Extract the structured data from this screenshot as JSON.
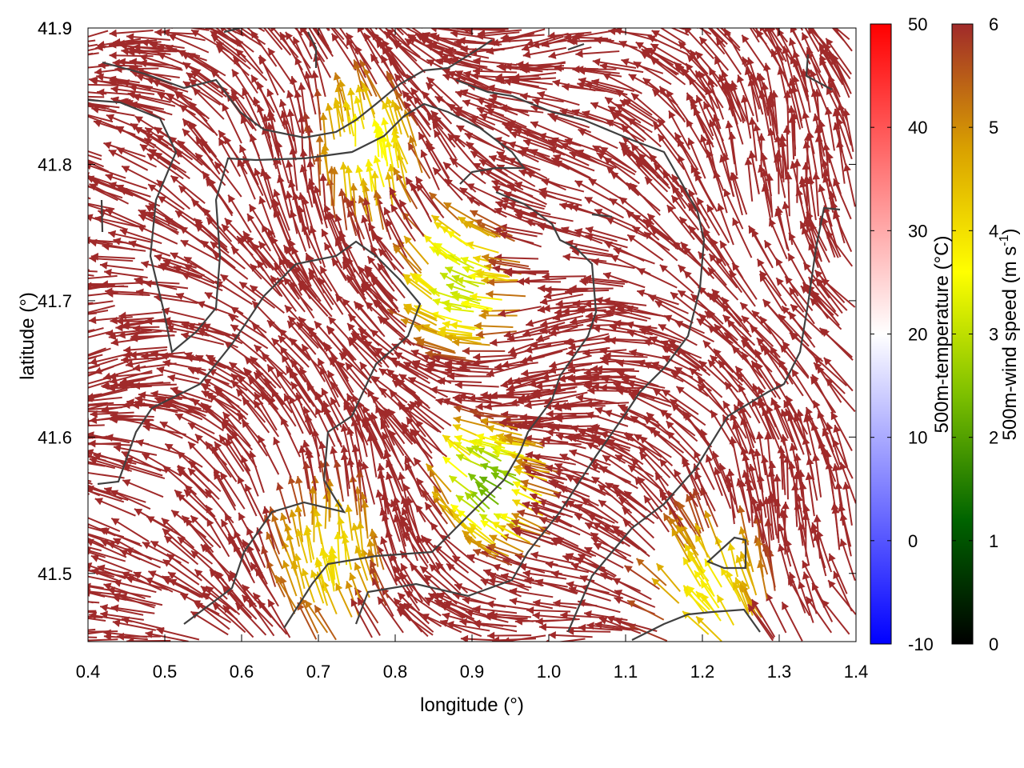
{
  "chart_data": {
    "type": "vector-field",
    "x_axis": {
      "label": "longitude (°)",
      "range": [
        0.4,
        1.4
      ],
      "ticks": [
        "0.4",
        "0.5",
        "0.6",
        "0.7",
        "0.8",
        "0.9",
        "1.0",
        "1.1",
        "1.2",
        "1.3",
        "1.4"
      ]
    },
    "y_axis": {
      "label": "latitude (°)",
      "range": [
        41.45,
        41.9
      ],
      "ticks": [
        "41.5",
        "41.6",
        "41.7",
        "41.8",
        "41.9"
      ]
    },
    "colorbar_temperature": {
      "label": "500m-temperature (°C)",
      "range": [
        -10,
        50
      ],
      "ticks": [
        "-10",
        "0",
        "10",
        "20",
        "30",
        "40",
        "50"
      ],
      "colors": [
        "#0000ff",
        "#ffffff",
        "#ff0000"
      ]
    },
    "colorbar_wind": {
      "label_main": "500m-wind speed (m s",
      "label_sup": "-1",
      "label_end": ")",
      "range": [
        0,
        6
      ],
      "ticks": [
        "0",
        "1",
        "2",
        "3",
        "4",
        "5",
        "6"
      ],
      "colors": [
        "#000000",
        "#006400",
        "#7cbf00",
        "#ffff00",
        "#d9a000",
        "#a02a2a"
      ]
    },
    "wind_field": {
      "dominant_color": "#a52a2a",
      "direction": "north-west (toward upper-left)",
      "calm_zones": [
        {
          "lon": 0.77,
          "lat": 41.8,
          "speed": 3.5
        },
        {
          "lon": 0.9,
          "lat": 41.71,
          "speed": 3.0
        },
        {
          "lon": 0.94,
          "lat": 41.56,
          "speed": 2.2
        },
        {
          "lon": 0.72,
          "lat": 41.5,
          "speed": 4.0
        },
        {
          "lon": 1.22,
          "lat": 41.48,
          "speed": 3.8
        }
      ]
    },
    "contour_color": "#404040",
    "grid": false
  }
}
